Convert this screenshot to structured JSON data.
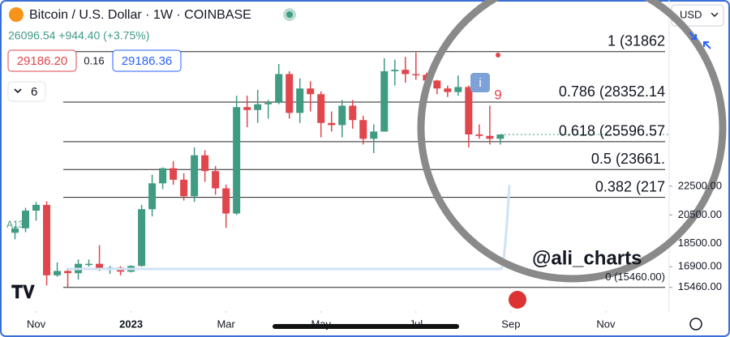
{
  "chart_data": {
    "type": "candlestick",
    "title": "Bitcoin / U.S. Dollar · 1W · COINBASE",
    "quote": "26096.54 +944.40 (+3.75%)",
    "bid": "29186.20",
    "spread": "0.16",
    "ask": "29186.36",
    "interval_count": "6",
    "currency": "USD",
    "watermark": "@ali_charts",
    "indicator_label": "A13",
    "count_label": "9",
    "info_label": "i",
    "up_color": "#3f9b82",
    "down_color": "#e0464c",
    "xticks": [
      {
        "value": 2,
        "label": "Nov"
      },
      {
        "value": 11,
        "label": "2023"
      },
      {
        "value": 20,
        "label": "Mar"
      },
      {
        "value": 29,
        "label": "May"
      },
      {
        "value": 38,
        "label": "Jul"
      },
      {
        "value": 47,
        "label": "Sep"
      },
      {
        "value": 56,
        "label": "Nov"
      }
    ],
    "xlim": [
      -0.5,
      62
    ],
    "ylim": [
      14600,
      33200
    ],
    "yticks": [
      {
        "value": 15460,
        "label": "15460.00"
      },
      {
        "value": 16900,
        "label": "16900.00"
      },
      {
        "value": 18500,
        "label": "18500.00"
      },
      {
        "value": 20500,
        "label": "20500.00"
      },
      {
        "value": 22500,
        "label": "22500.00"
      }
    ],
    "fib_levels": [
      {
        "label": "1 (31862",
        "price": 31862
      },
      {
        "label": "0.786 (28352.14",
        "price": 28352.14
      },
      {
        "label": "0.618 (25596.57",
        "price": 25596.57
      },
      {
        "label": "0.5 (23661.",
        "price": 23661
      },
      {
        "label": "0.382 (217",
        "price": 21725
      },
      {
        "label": "0 (15460.00)",
        "price": 15460
      }
    ],
    "candles": {
      "open": [
        19260,
        19570,
        20800,
        21200,
        16300,
        16600,
        16450,
        17100,
        17100,
        16780,
        16840,
        16550,
        16950,
        20900,
        22700,
        23750,
        22950,
        21800,
        24650,
        23550,
        22350,
        20600,
        28000,
        27800,
        28200,
        28300,
        30300,
        27600,
        29300,
        28900,
        26900,
        26750,
        28100,
        27100,
        25800,
        26300,
        30500,
        30600,
        30300,
        30250,
        29850,
        29300,
        29050,
        29400,
        26100,
        26000,
        25800
      ],
      "high": [
        19700,
        21000,
        21400,
        21450,
        17200,
        16700,
        17400,
        17400,
        18400,
        16950,
        16940,
        17000,
        21200,
        23300,
        23800,
        24250,
        23400,
        25200,
        25000,
        23900,
        22600,
        28800,
        28800,
        29200,
        28500,
        31000,
        30500,
        30000,
        29800,
        29100,
        27700,
        28500,
        28500,
        27400,
        26800,
        31400,
        31300,
        31500,
        31800,
        30400,
        29900,
        29500,
        30200,
        29500,
        26800,
        28100,
        26100
      ],
      "low": [
        18800,
        19300,
        20100,
        15600,
        16200,
        15500,
        16000,
        16900,
        16600,
        16400,
        16300,
        16500,
        16900,
        20400,
        22300,
        22600,
        21500,
        21400,
        22800,
        21900,
        19600,
        20500,
        26600,
        26900,
        27200,
        28200,
        27200,
        26900,
        27700,
        25900,
        26300,
        25900,
        26500,
        25400,
        24800,
        26300,
        29500,
        29700,
        29900,
        29500,
        28900,
        28700,
        28800,
        25200,
        25800,
        25400,
        25400
      ],
      "close": [
        19570,
        20800,
        21200,
        16300,
        16600,
        16450,
        17100,
        17100,
        16780,
        16840,
        16550,
        16950,
        20900,
        22700,
        23750,
        22950,
        21800,
        24650,
        23550,
        22350,
        20600,
        28000,
        27800,
        28200,
        28300,
        30300,
        27600,
        29300,
        28900,
        26900,
        26750,
        28100,
        27100,
        25800,
        26300,
        30500,
        30600,
        30300,
        30250,
        29850,
        29300,
        29050,
        29400,
        26100,
        26000,
        25800,
        26096.54
      ]
    }
  }
}
